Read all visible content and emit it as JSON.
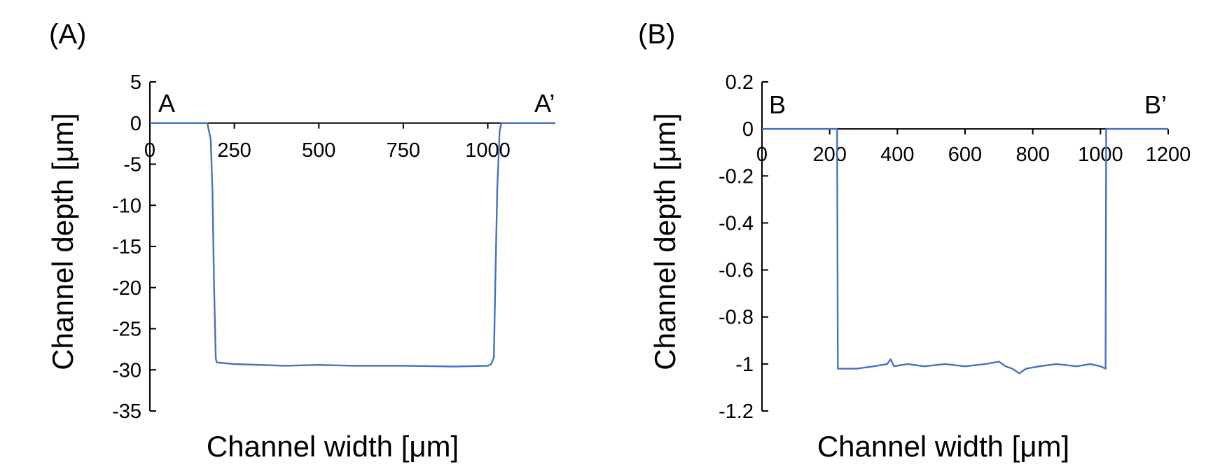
{
  "colors": {
    "series": "#4472C4",
    "axis": "#000000"
  },
  "chart_data": [
    {
      "type": "line",
      "panel_label": "(A)",
      "xlabel": "Channel width [μm]",
      "ylabel": "Channel depth [μm]",
      "xlim": [
        0,
        1200
      ],
      "ylim": [
        -35,
        5
      ],
      "xticks": [
        0,
        250,
        500,
        750,
        1000
      ],
      "yticks": [
        5,
        0,
        -5,
        -10,
        -15,
        -20,
        -25,
        -30,
        -35
      ],
      "x_tick_labels": [
        "0",
        "250",
        "500",
        "750",
        "1000"
      ],
      "y_tick_labels": [
        "5",
        "0",
        "-5",
        "-10",
        "-15",
        "-20",
        "-25",
        "-30",
        "-35"
      ],
      "start_label": "A",
      "end_label": "A’",
      "grid": false,
      "series": [
        {
          "x": [
            0,
            170,
            180,
            185,
            190,
            195,
            198,
            250,
            400,
            500,
            600,
            750,
            900,
            1000,
            1010,
            1018,
            1022,
            1028,
            1035,
            1040,
            1200
          ],
          "y": [
            0,
            0,
            -2,
            -8,
            -20,
            -28.6,
            -29.1,
            -29.3,
            -29.5,
            -29.4,
            -29.5,
            -29.5,
            -29.6,
            -29.5,
            -29.3,
            -28.5,
            -20,
            -8,
            -1,
            0,
            0
          ]
        }
      ]
    },
    {
      "type": "line",
      "panel_label": "(B)",
      "xlabel": "Channel width [μm]",
      "ylabel": "Channel depth [μm]",
      "xlim": [
        0,
        1200
      ],
      "ylim": [
        -1.2,
        0.2
      ],
      "xticks": [
        0,
        200,
        400,
        600,
        800,
        1000,
        1200
      ],
      "yticks": [
        0.2,
        0,
        -0.2,
        -0.4,
        -0.6,
        -0.8,
        -1,
        -1.2
      ],
      "x_tick_labels": [
        "0",
        "200",
        "400",
        "600",
        "800",
        "1000",
        "1200"
      ],
      "y_tick_labels": [
        "0.2",
        "0",
        "-0.2",
        "-0.4",
        "-0.6",
        "-0.8",
        "-1",
        "-1.2"
      ],
      "start_label": "B",
      "end_label": "B’",
      "grid": false,
      "series": [
        {
          "x": [
            0,
            210,
            222,
            224,
            240,
            280,
            330,
            370,
            380,
            390,
            430,
            480,
            540,
            600,
            660,
            700,
            720,
            740,
            760,
            770,
            780,
            820,
            870,
            930,
            970,
            1000,
            1015,
            1017,
            1030,
            1200
          ],
          "y": [
            0,
            0,
            0,
            -1.02,
            -1.02,
            -1.02,
            -1.01,
            -1.0,
            -0.98,
            -1.01,
            -1.0,
            -1.01,
            -1.0,
            -1.01,
            -1.0,
            -0.99,
            -1.01,
            -1.02,
            -1.04,
            -1.03,
            -1.02,
            -1.01,
            -1.0,
            -1.01,
            -1.0,
            -1.01,
            -1.02,
            0,
            0,
            0
          ]
        }
      ]
    }
  ]
}
